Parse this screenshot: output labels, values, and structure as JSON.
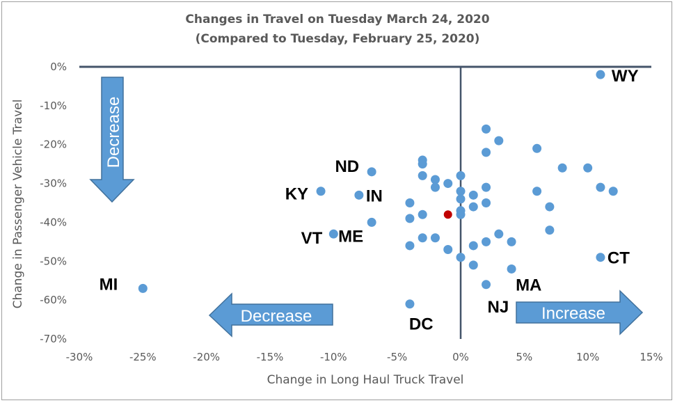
{
  "chart_data": {
    "type": "scatter",
    "title": "Changes in Travel on Tuesday March 24, 2020",
    "subtitle": "(Compared to Tuesday, February 25, 2020)",
    "xlabel": "Change in Long Haul Truck Travel",
    "ylabel": "Change in Passenger Vehicle Travel",
    "xlim": [
      -0.3,
      0.15
    ],
    "ylim": [
      -0.7,
      0.0
    ],
    "x_ticks": [
      "-30%",
      "-25%",
      "-20%",
      "-15%",
      "-10%",
      "-5%",
      "0%",
      "5%",
      "10%",
      "15%"
    ],
    "y_ticks": [
      "0%",
      "-10%",
      "-20%",
      "-30%",
      "-40%",
      "-50%",
      "-60%",
      "-70%"
    ],
    "grid": false,
    "point_color": "#5b9bd5",
    "highlight_color": "#c00000",
    "points": [
      {
        "x": 0.11,
        "y": -0.02,
        "label": "WY"
      },
      {
        "x": -0.25,
        "y": -0.57,
        "label": "MI"
      },
      {
        "x": -0.11,
        "y": -0.32,
        "label": "KY"
      },
      {
        "x": -0.07,
        "y": -0.27,
        "label": "ND"
      },
      {
        "x": -0.08,
        "y": -0.33,
        "label": "IN"
      },
      {
        "x": -0.1,
        "y": -0.43,
        "label": "VT"
      },
      {
        "x": -0.07,
        "y": -0.4,
        "label": "ME"
      },
      {
        "x": -0.04,
        "y": -0.61,
        "label": "DC"
      },
      {
        "x": 0.02,
        "y": -0.56,
        "label": "NJ"
      },
      {
        "x": 0.04,
        "y": -0.52,
        "label": "MA"
      },
      {
        "x": 0.11,
        "y": -0.49,
        "label": "CT"
      },
      {
        "x": 0.02,
        "y": -0.16,
        "label": ""
      },
      {
        "x": 0.03,
        "y": -0.19,
        "label": ""
      },
      {
        "x": 0.02,
        "y": -0.22,
        "label": ""
      },
      {
        "x": 0.06,
        "y": -0.21,
        "label": ""
      },
      {
        "x": 0.08,
        "y": -0.26,
        "label": ""
      },
      {
        "x": 0.1,
        "y": -0.26,
        "label": ""
      },
      {
        "x": 0.11,
        "y": -0.31,
        "label": ""
      },
      {
        "x": 0.12,
        "y": -0.32,
        "label": ""
      },
      {
        "x": 0.06,
        "y": -0.32,
        "label": ""
      },
      {
        "x": 0.07,
        "y": -0.36,
        "label": ""
      },
      {
        "x": 0.07,
        "y": -0.42,
        "label": ""
      },
      {
        "x": -0.03,
        "y": -0.24,
        "label": ""
      },
      {
        "x": -0.03,
        "y": -0.25,
        "label": ""
      },
      {
        "x": -0.03,
        "y": -0.28,
        "label": ""
      },
      {
        "x": -0.02,
        "y": -0.29,
        "label": ""
      },
      {
        "x": -0.02,
        "y": -0.31,
        "label": ""
      },
      {
        "x": -0.01,
        "y": -0.3,
        "label": ""
      },
      {
        "x": 0.0,
        "y": -0.28,
        "label": ""
      },
      {
        "x": 0.0,
        "y": -0.32,
        "label": ""
      },
      {
        "x": 0.0,
        "y": -0.34,
        "label": ""
      },
      {
        "x": 0.01,
        "y": -0.33,
        "label": ""
      },
      {
        "x": 0.02,
        "y": -0.31,
        "label": ""
      },
      {
        "x": 0.02,
        "y": -0.35,
        "label": ""
      },
      {
        "x": 0.01,
        "y": -0.36,
        "label": ""
      },
      {
        "x": 0.0,
        "y": -0.37,
        "label": ""
      },
      {
        "x": 0.0,
        "y": -0.38,
        "label": ""
      },
      {
        "x": -0.04,
        "y": -0.35,
        "label": ""
      },
      {
        "x": -0.04,
        "y": -0.39,
        "label": ""
      },
      {
        "x": -0.03,
        "y": -0.38,
        "label": ""
      },
      {
        "x": -0.04,
        "y": -0.46,
        "label": ""
      },
      {
        "x": -0.03,
        "y": -0.44,
        "label": ""
      },
      {
        "x": -0.02,
        "y": -0.44,
        "label": ""
      },
      {
        "x": -0.01,
        "y": -0.47,
        "label": ""
      },
      {
        "x": 0.0,
        "y": -0.49,
        "label": ""
      },
      {
        "x": 0.01,
        "y": -0.46,
        "label": ""
      },
      {
        "x": 0.01,
        "y": -0.51,
        "label": ""
      },
      {
        "x": 0.02,
        "y": -0.45,
        "label": ""
      },
      {
        "x": 0.03,
        "y": -0.43,
        "label": ""
      },
      {
        "x": 0.04,
        "y": -0.45,
        "label": ""
      },
      {
        "x": -0.01,
        "y": -0.38,
        "label": "",
        "highlight": true
      }
    ],
    "annotations": {
      "left_arrow": "Decrease",
      "right_arrow": "Increase",
      "down_arrow": "Decrease"
    },
    "arrow_color": "#5b9bd5",
    "arrow_outline": "#41719c"
  }
}
